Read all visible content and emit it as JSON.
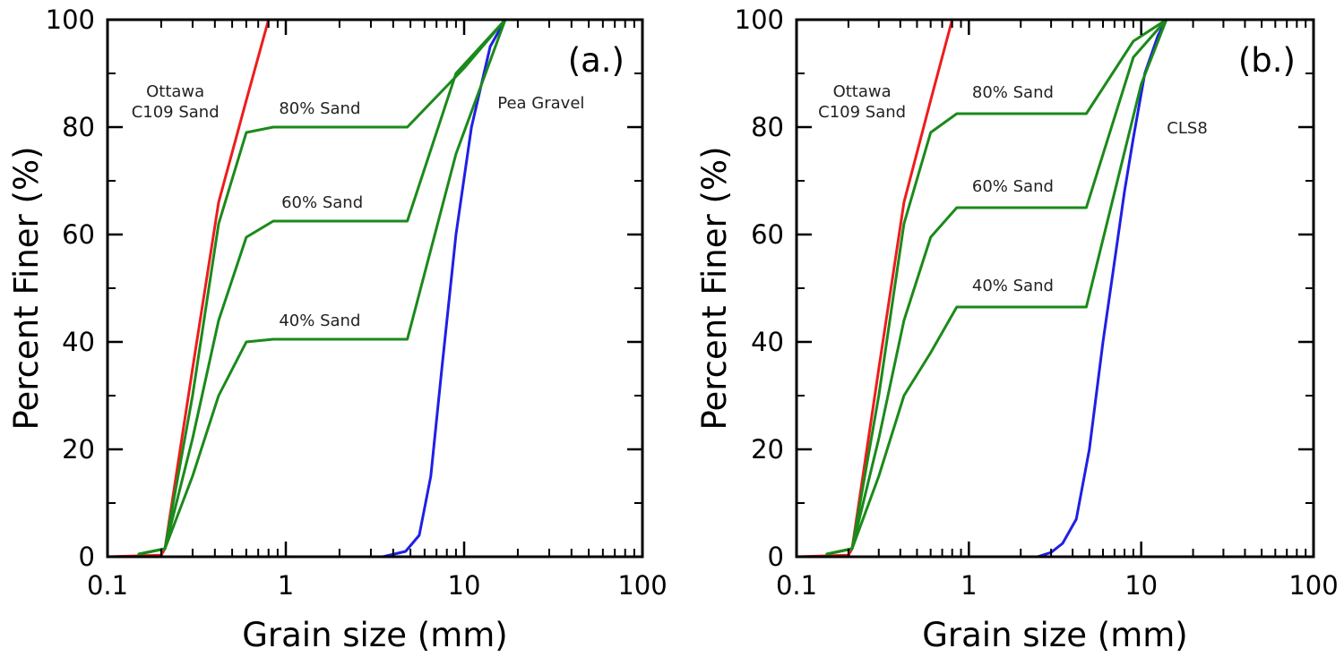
{
  "chart_data": [
    {
      "type": "line",
      "panel_label": "(a.)",
      "xlabel": "Grain size (mm)",
      "ylabel": "Percent Finer (%)",
      "xscale": "log",
      "xlim": [
        0.1,
        100
      ],
      "ylim": [
        0,
        100
      ],
      "x_ticks": [
        "0.1",
        "1",
        "10",
        "100"
      ],
      "y_ticks": [
        "0",
        "20",
        "40",
        "60",
        "80",
        "100"
      ],
      "grid": false,
      "series": [
        {
          "name": "Ottawa C109 Sand",
          "color": "#ee1c1c",
          "points": [
            [
              0.1,
              0
            ],
            [
              0.2,
              0.3
            ],
            [
              0.21,
              1.5
            ],
            [
              0.3,
              35
            ],
            [
              0.42,
              66
            ],
            [
              0.6,
              85
            ],
            [
              0.8,
              100
            ],
            [
              2.0,
              100
            ]
          ]
        },
        {
          "name": "Pea Gravel",
          "color": "#1f1fe6",
          "points": [
            [
              0.1,
              0
            ],
            [
              3.5,
              0
            ],
            [
              4.7,
              1
            ],
            [
              5.6,
              4
            ],
            [
              6.5,
              15
            ],
            [
              7.5,
              35
            ],
            [
              9,
              60
            ],
            [
              11,
              80
            ],
            [
              14,
              95
            ],
            [
              17,
              100
            ],
            [
              20,
              100
            ]
          ]
        },
        {
          "name": "80% Sand",
          "color": "#1a8a1a",
          "points": [
            [
              0.15,
              0.5
            ],
            [
              0.21,
              1.5
            ],
            [
              0.3,
              30
            ],
            [
              0.42,
              62
            ],
            [
              0.6,
              79
            ],
            [
              0.85,
              80
            ],
            [
              4.8,
              80
            ],
            [
              10,
              91
            ],
            [
              17,
              100
            ]
          ]
        },
        {
          "name": "60% Sand",
          "color": "#1a8a1a",
          "points": [
            [
              0.15,
              0.5
            ],
            [
              0.21,
              1.5
            ],
            [
              0.3,
              22
            ],
            [
              0.42,
              44
            ],
            [
              0.6,
              59.5
            ],
            [
              0.85,
              62.5
            ],
            [
              4.8,
              62.5
            ],
            [
              9,
              90
            ],
            [
              17,
              100
            ]
          ]
        },
        {
          "name": "40% Sand",
          "color": "#1a8a1a",
          "points": [
            [
              0.15,
              0.5
            ],
            [
              0.21,
              1.5
            ],
            [
              0.3,
              15
            ],
            [
              0.42,
              30
            ],
            [
              0.6,
              40
            ],
            [
              0.85,
              40.5
            ],
            [
              4.8,
              40.5
            ],
            [
              9,
              75
            ],
            [
              17,
              100
            ]
          ]
        }
      ],
      "annotations": [
        {
          "text": "Ottawa",
          "x": 0.24,
          "y": 85.7
        },
        {
          "text": "C109 Sand",
          "x": 0.24,
          "y": 81.8
        },
        {
          "text": "80% Sand",
          "x": 1.55,
          "y": 82.5
        },
        {
          "text": "60% Sand",
          "x": 1.6,
          "y": 65
        },
        {
          "text": "40% Sand",
          "x": 1.55,
          "y": 43
        },
        {
          "text": "Pea Gravel",
          "x": 27,
          "y": 83.5
        }
      ]
    },
    {
      "type": "line",
      "panel_label": "(b.)",
      "xlabel": "Grain size (mm)",
      "ylabel": "Percent Finer (%)",
      "xscale": "log",
      "xlim": [
        0.1,
        100
      ],
      "ylim": [
        0,
        100
      ],
      "x_ticks": [
        "0.1",
        "1",
        "10",
        "100"
      ],
      "y_ticks": [
        "0",
        "20",
        "40",
        "60",
        "80",
        "100"
      ],
      "grid": false,
      "series": [
        {
          "name": "Ottawa C109 Sand",
          "color": "#ee1c1c",
          "points": [
            [
              0.1,
              0
            ],
            [
              0.2,
              0.3
            ],
            [
              0.21,
              1.5
            ],
            [
              0.3,
              35
            ],
            [
              0.42,
              66
            ],
            [
              0.6,
              85
            ],
            [
              0.8,
              100
            ],
            [
              2.0,
              100
            ]
          ]
        },
        {
          "name": "CLS8",
          "color": "#1f1fe6",
          "points": [
            [
              2.0,
              0
            ],
            [
              2.5,
              0
            ],
            [
              3,
              0.8
            ],
            [
              3.5,
              2.5
            ],
            [
              4.2,
              7
            ],
            [
              5,
              20
            ],
            [
              6,
              40
            ],
            [
              7,
              55
            ],
            [
              8,
              68
            ],
            [
              9,
              78
            ],
            [
              10.5,
              90
            ],
            [
              12.5,
              97
            ],
            [
              14,
              100
            ]
          ]
        },
        {
          "name": "80% Sand",
          "color": "#1a8a1a",
          "points": [
            [
              0.15,
              0.5
            ],
            [
              0.21,
              1.5
            ],
            [
              0.3,
              30
            ],
            [
              0.42,
              62
            ],
            [
              0.6,
              79
            ],
            [
              0.85,
              82.5
            ],
            [
              4.8,
              82.5
            ],
            [
              9,
              96
            ],
            [
              14,
              100
            ]
          ]
        },
        {
          "name": "60% Sand",
          "color": "#1a8a1a",
          "points": [
            [
              0.15,
              0.5
            ],
            [
              0.21,
              1.5
            ],
            [
              0.3,
              22
            ],
            [
              0.42,
              44
            ],
            [
              0.6,
              59.5
            ],
            [
              0.85,
              65
            ],
            [
              4.8,
              65
            ],
            [
              9,
              93
            ],
            [
              14,
              100
            ]
          ]
        },
        {
          "name": "40% Sand",
          "color": "#1a8a1a",
          "points": [
            [
              0.15,
              0.5
            ],
            [
              0.21,
              1.5
            ],
            [
              0.3,
              15
            ],
            [
              0.42,
              30
            ],
            [
              0.6,
              38
            ],
            [
              0.85,
              46.5
            ],
            [
              4.8,
              46.5
            ],
            [
              10,
              88
            ],
            [
              14,
              100
            ]
          ]
        }
      ],
      "annotations": [
        {
          "text": "Ottawa",
          "x": 0.24,
          "y": 85.7
        },
        {
          "text": "C109 Sand",
          "x": 0.24,
          "y": 81.8
        },
        {
          "text": "80% Sand",
          "x": 1.8,
          "y": 85.5
        },
        {
          "text": "60% Sand",
          "x": 1.8,
          "y": 68
        },
        {
          "text": "40% Sand",
          "x": 1.8,
          "y": 49.5
        },
        {
          "text": "CLS8",
          "x": 18.5,
          "y": 78.8
        }
      ]
    }
  ]
}
